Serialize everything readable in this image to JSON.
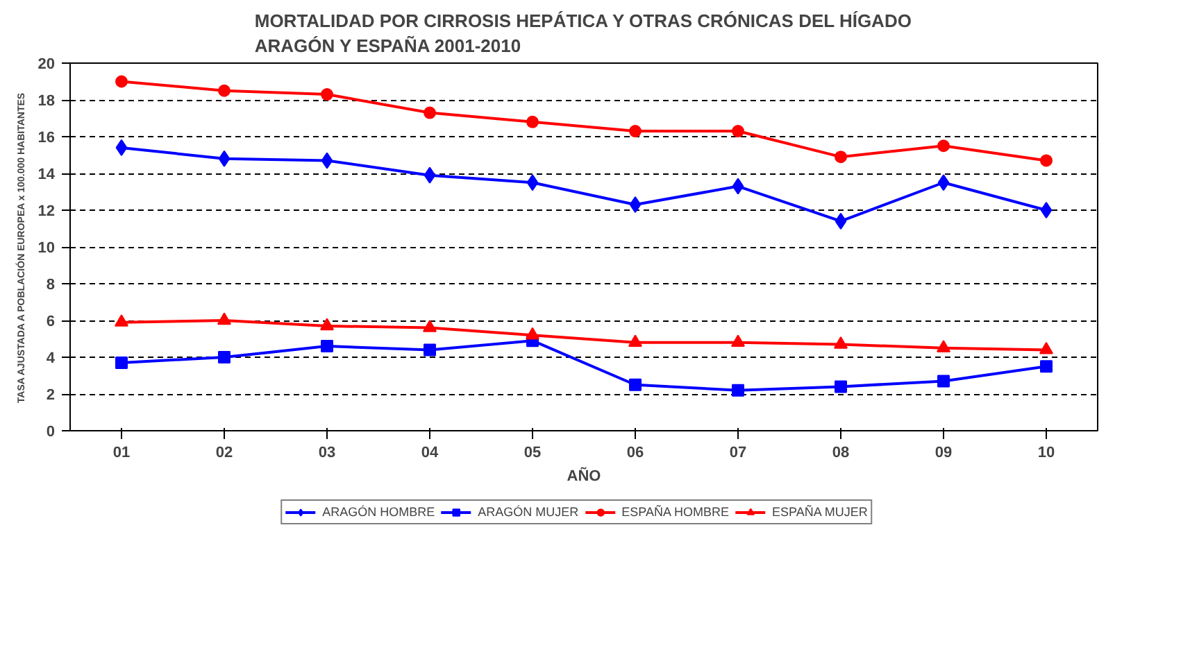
{
  "chart_data": {
    "type": "line",
    "title": "MORTALIDAD POR CIRROSIS HEPÁTICA Y OTRAS CRÓNICAS DEL HÍGADO\nARAGÓN Y ESPAÑA   2001-2010",
    "xlabel": "AÑO",
    "ylabel": "TASA AJUSTADA A POBLACIÓN EUROPEA x 100.000 HABITANTES",
    "categories": [
      "01",
      "02",
      "03",
      "04",
      "05",
      "06",
      "07",
      "08",
      "09",
      "10"
    ],
    "ylim": [
      0,
      20
    ],
    "yticks": [
      0,
      2,
      4,
      6,
      8,
      10,
      12,
      14,
      16,
      18,
      20
    ],
    "grid": "y",
    "legend": "bottom",
    "series": [
      {
        "name": "ARAGÓN HOMBRE",
        "color": "#0000ff",
        "marker": "diamond",
        "values": [
          15.4,
          14.8,
          14.7,
          13.9,
          13.5,
          12.3,
          13.3,
          11.4,
          13.5,
          12.0
        ]
      },
      {
        "name": "ARAGÓN MUJER",
        "color": "#0000ff",
        "marker": "square",
        "values": [
          3.7,
          4.0,
          4.6,
          4.4,
          4.9,
          2.5,
          2.2,
          2.4,
          2.7,
          3.5
        ]
      },
      {
        "name": "ESPAÑA HOMBRE",
        "color": "#ff0000",
        "marker": "circle",
        "values": [
          19.0,
          18.5,
          18.3,
          17.3,
          16.8,
          16.3,
          16.3,
          14.9,
          15.5,
          14.7
        ]
      },
      {
        "name": "ESPAÑA MUJER",
        "color": "#ff0000",
        "marker": "triangle",
        "values": [
          5.9,
          6.0,
          5.7,
          5.6,
          5.2,
          4.8,
          4.8,
          4.7,
          4.5,
          4.4
        ]
      }
    ]
  }
}
